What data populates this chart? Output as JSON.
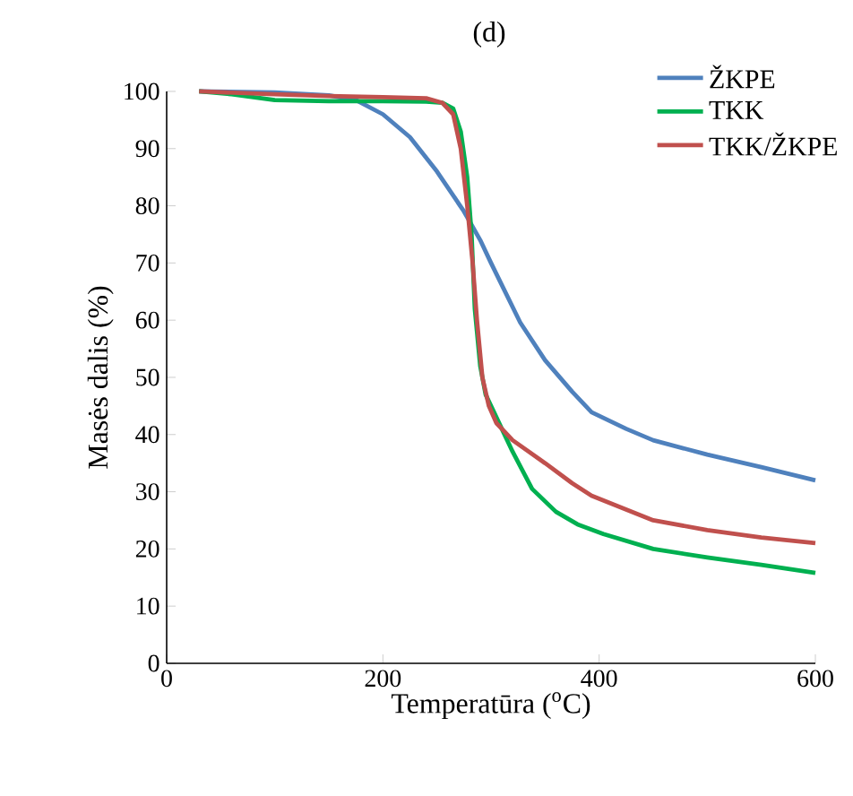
{
  "chart_data": {
    "type": "line",
    "title": "(d)",
    "xlabel": "Temperatūra ($^{o}$C)",
    "ylabel": "Masės dalis (%)",
    "xlim": [
      0,
      600
    ],
    "ylim": [
      0,
      100
    ],
    "xticks": [
      0,
      200,
      400,
      600
    ],
    "yticks": [
      0,
      10,
      20,
      30,
      40,
      50,
      60,
      70,
      80,
      90,
      100
    ],
    "grid": false,
    "legend": "top right",
    "marker": "none",
    "line_style": "solid",
    "series": [
      {
        "name": "ŽKPE",
        "color": "#4f81bd",
        "x": [
          30,
          100,
          150,
          175,
          200,
          225,
          250,
          275,
          290,
          300,
          327,
          350,
          375,
          393,
          425,
          450,
          500,
          550,
          600
        ],
        "values": [
          100,
          99.8,
          99.3,
          98.5,
          96,
          92,
          86,
          79,
          74,
          70,
          59.6,
          53,
          47.5,
          43.9,
          41,
          39,
          36.5,
          34.3,
          32
        ]
      },
      {
        "name": "TKK",
        "color": "#00b050",
        "x": [
          30,
          60,
          100,
          150,
          200,
          240,
          255,
          265,
          272,
          278,
          282,
          285,
          290,
          295,
          305,
          320,
          338,
          360,
          380,
          404,
          450,
          500,
          550,
          600
        ],
        "values": [
          100,
          99.5,
          98.5,
          98.3,
          98.3,
          98.2,
          98,
          97,
          93,
          85,
          75,
          62,
          52,
          47,
          43,
          37,
          30.5,
          26.5,
          24.3,
          22.6,
          20,
          18.5,
          17.2,
          15.8
        ]
      },
      {
        "name": "TKK/ŽKPE",
        "color": "#c0504d",
        "x": [
          30,
          100,
          150,
          200,
          240,
          255,
          265,
          272,
          278,
          283,
          287,
          292,
          298,
          305,
          320,
          350,
          375,
          393,
          450,
          500,
          550,
          600
        ],
        "values": [
          100,
          99.5,
          99.2,
          99,
          98.8,
          98,
          96,
          90,
          80,
          70,
          60,
          50,
          45,
          42,
          39,
          35,
          31.5,
          29.3,
          25,
          23.3,
          22,
          21
        ]
      }
    ]
  }
}
